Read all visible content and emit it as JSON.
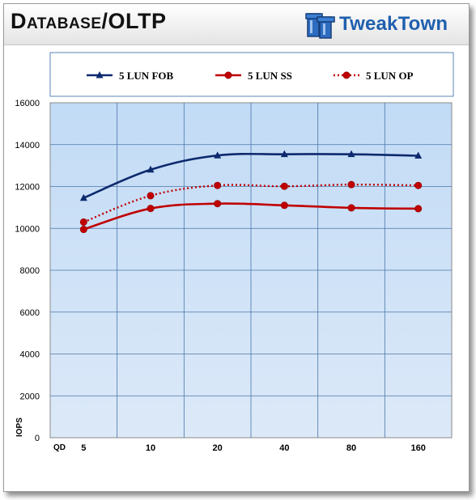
{
  "header": {
    "title": "Database/OLTP",
    "logo_text": "TweakTown",
    "logo_icon": "tt-logo-icon"
  },
  "chart_data": {
    "type": "line",
    "categories": [
      "5",
      "10",
      "20",
      "40",
      "80",
      "160"
    ],
    "xlabel": "QD",
    "ylabel": "IOPS",
    "ylim": [
      0,
      16000
    ],
    "yticks": [
      0,
      2000,
      4000,
      6000,
      8000,
      10000,
      12000,
      14000,
      16000
    ],
    "grid": true,
    "legend_position": "top",
    "series": [
      {
        "name": "5 LUN FOB",
        "values": [
          11450,
          12800,
          13480,
          13540,
          13540,
          13470
        ],
        "color": "#0d2a6e",
        "marker": "triangle",
        "dash": "solid"
      },
      {
        "name": "5 LUN SS",
        "values": [
          9950,
          10950,
          11180,
          11100,
          10980,
          10940
        ],
        "color": "#c00000",
        "marker": "circle",
        "dash": "solid"
      },
      {
        "name": "5 LUN OP",
        "values": [
          10300,
          11560,
          12050,
          12010,
          12090,
          12050
        ],
        "color": "#c00000",
        "marker": "circle",
        "dash": "dotted"
      }
    ]
  }
}
